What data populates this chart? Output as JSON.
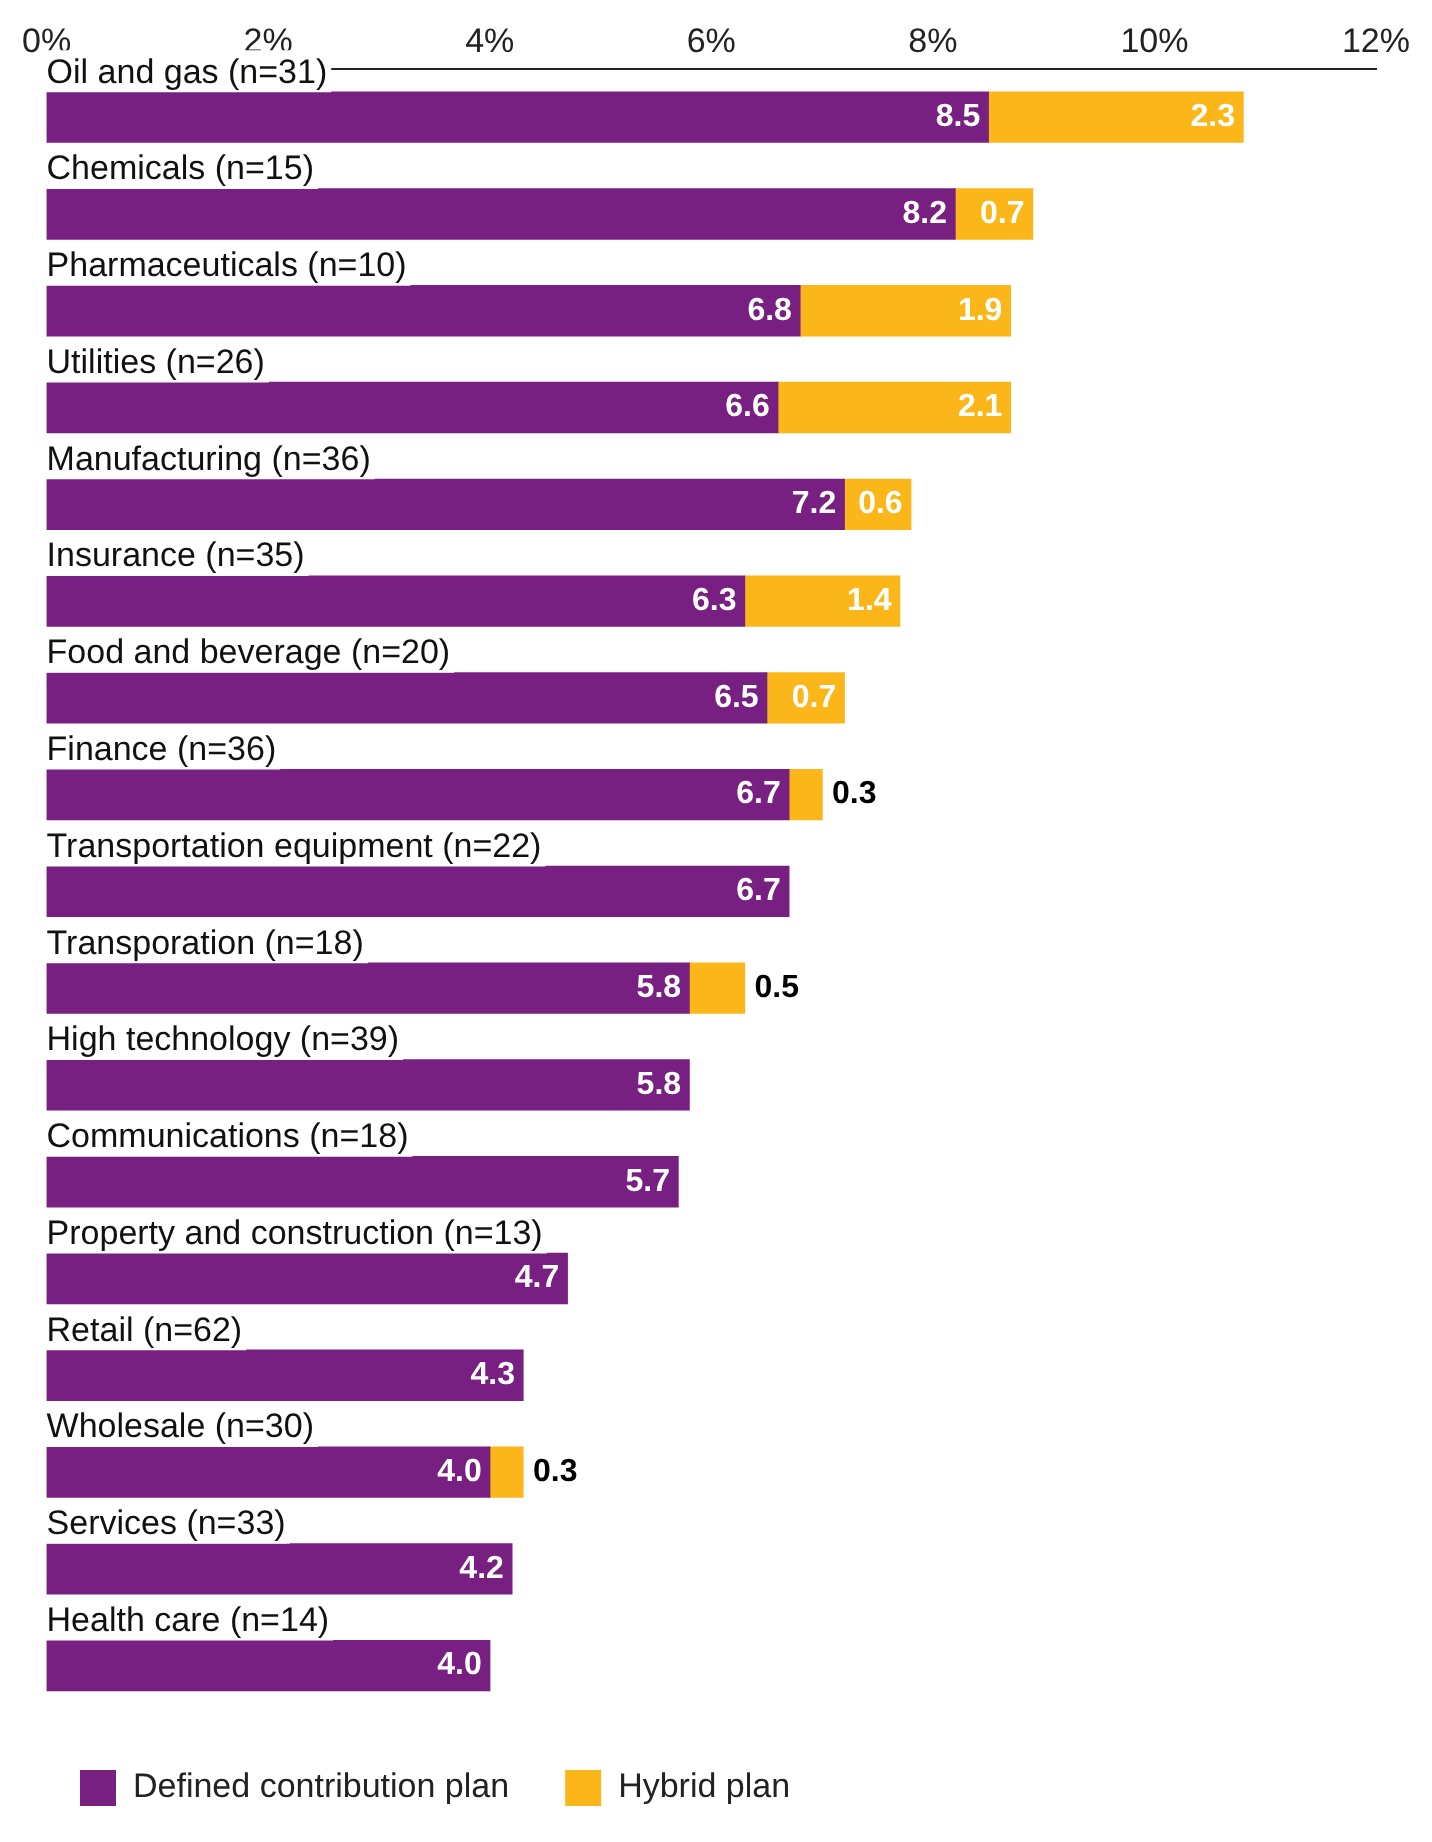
{
  "chart_data": {
    "type": "bar",
    "orientation": "horizontal",
    "stacked": true,
    "categories": [
      "Oil and gas (n=31)",
      "Chemicals (n=15)",
      "Pharmaceuticals (n=10)",
      "Utilities (n=26)",
      "Manufacturing (n=36)",
      "Insurance (n=35)",
      "Food and beverage (n=20)",
      "Finance (n=36)",
      "Transportation equipment (n=22)",
      "Transporation (n=18)",
      "High technology (n=39)",
      "Communications (n=18)",
      "Property and construction (n=13)",
      "Retail (n=62)",
      "Wholesale (n=30)",
      "Services (n=33)",
      "Health care (n=14)"
    ],
    "series": [
      {
        "name": "Defined contribution plan",
        "color": "#772081",
        "values": [
          8.5,
          8.2,
          6.8,
          6.6,
          7.2,
          6.3,
          6.5,
          6.7,
          6.7,
          5.8,
          5.8,
          5.7,
          4.7,
          4.3,
          4.0,
          4.2,
          4.0
        ],
        "value_labels": [
          "8.5",
          "8.2",
          "6.8",
          "6.6",
          "7.2",
          "6.3",
          "6.5",
          "6.7",
          "6.7",
          "5.8",
          "5.8",
          "5.7",
          "4.7",
          "4.3",
          "4.0",
          "4.2",
          "4.0"
        ]
      },
      {
        "name": "Hybrid plan",
        "color": "#fbb619",
        "values": [
          2.3,
          0.7,
          1.9,
          2.1,
          0.6,
          1.4,
          0.7,
          0.3,
          null,
          0.5,
          null,
          null,
          null,
          null,
          0.3,
          null,
          null
        ],
        "value_labels": [
          "2.3",
          "0.7",
          "1.9",
          "2.1",
          "0.6",
          "1.4",
          "0.7",
          "0.3",
          null,
          "0.5",
          null,
          null,
          null,
          null,
          "0.3",
          null,
          null
        ]
      }
    ],
    "xlim": [
      0,
      12
    ],
    "xticks": [
      {
        "value": 0,
        "label": "0%"
      },
      {
        "value": 2,
        "label": "2%"
      },
      {
        "value": 4,
        "label": "4%"
      },
      {
        "value": 6,
        "label": "6%"
      },
      {
        "value": 8,
        "label": "8%"
      },
      {
        "value": 10,
        "label": "10%"
      },
      {
        "value": 12,
        "label": "12%"
      }
    ],
    "grid": false,
    "legend": "bottom left"
  }
}
